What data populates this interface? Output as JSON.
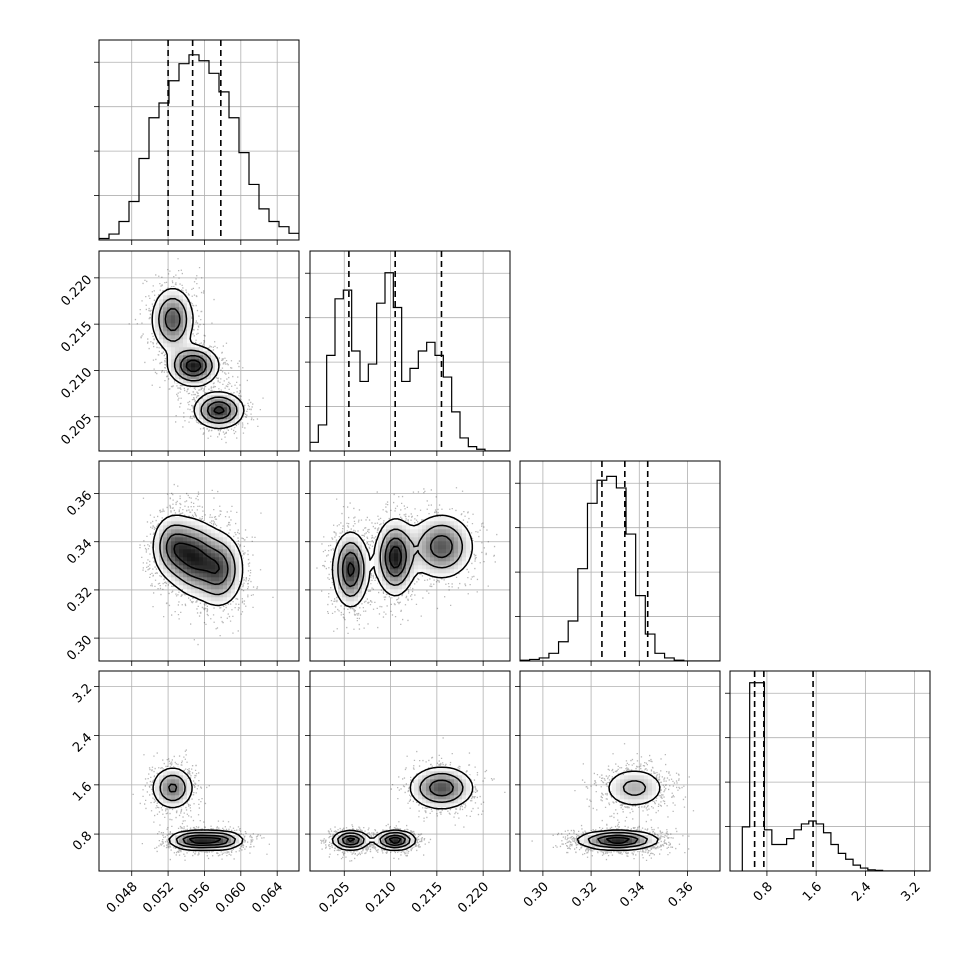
{
  "chart_data": {
    "type": "corner",
    "grid": true,
    "parameters": [
      {
        "index": 0,
        "range": [
          0.0444,
          0.0664
        ],
        "ticks": [
          "0.048",
          "0.052",
          "0.056",
          "0.060",
          "0.064"
        ],
        "tick_values": [
          0.048,
          0.052,
          0.056,
          0.06,
          0.064
        ],
        "quantiles": [
          0.052,
          0.0547,
          0.0578
        ],
        "histogram": {
          "bin_edges_start": 0.0444,
          "bin_width": 0.0011,
          "counts": [
            2,
            8,
            25,
            52,
            110,
            165,
            185,
            215,
            238,
            250,
            242,
            225,
            200,
            165,
            118,
            75,
            42,
            25,
            18,
            9,
            3,
            1
          ]
        },
        "hist_ylim": [
          0,
          270
        ]
      },
      {
        "index": 1,
        "range": [
          0.2013,
          0.2229
        ],
        "ticks": [
          "0.205",
          "0.210",
          "0.215",
          "0.220"
        ],
        "tick_values": [
          0.205,
          0.21,
          0.215,
          0.22
        ],
        "quantiles": [
          0.2055,
          0.2105,
          0.2155
        ],
        "histogram": {
          "bin_edges_start": 0.2013,
          "bin_width": 0.0009,
          "counts": [
            10,
            30,
            110,
            175,
            185,
            115,
            80,
            100,
            170,
            205,
            165,
            80,
            95,
            115,
            125,
            110,
            85,
            45,
            15,
            5,
            2,
            0,
            0,
            0
          ]
        },
        "hist_ylim": [
          0,
          230
        ]
      },
      {
        "index": 2,
        "range": [
          0.2905,
          0.3735
        ],
        "ticks": [
          "0.30",
          "0.32",
          "0.34",
          "0.36"
        ],
        "tick_values": [
          0.3,
          0.32,
          0.34,
          0.36
        ],
        "quantiles": [
          0.3245,
          0.334,
          0.3435
        ],
        "histogram": {
          "bin_edges_start": 0.2905,
          "bin_width": 0.004,
          "counts": [
            1,
            2,
            4,
            10,
            25,
            52,
            120,
            205,
            235,
            240,
            225,
            165,
            85,
            35,
            10,
            4,
            1,
            0,
            0,
            0,
            0
          ]
        },
        "hist_ylim": [
          0,
          260
        ]
      },
      {
        "index": 3,
        "range": [
          0.2,
          3.45
        ],
        "ticks": [
          "0.8",
          "1.6",
          "2.4",
          "3.2"
        ],
        "tick_values": [
          0.8,
          1.6,
          2.4,
          3.2
        ],
        "quantiles": [
          0.6,
          0.75,
          1.55
        ],
        "histogram": {
          "bin_edges_start": 0.4,
          "bin_width": 0.12,
          "counts": [
            75,
            320,
            320,
            70,
            45,
            45,
            55,
            70,
            80,
            85,
            80,
            65,
            45,
            30,
            20,
            10,
            5,
            2,
            1,
            0,
            0,
            0,
            0,
            0,
            0
          ]
        },
        "hist_ylim": [
          0,
          340
        ]
      }
    ],
    "modes": [
      {
        "c": [
          0.0525,
          0.2155,
          0.338,
          1.55
        ],
        "s": [
          0.0012,
          0.0018,
          0.007,
          0.18
        ],
        "w": 1.0
      },
      {
        "c": [
          0.0548,
          0.2105,
          0.3335,
          0.7
        ],
        "s": [
          0.0014,
          0.0011,
          0.008,
          0.08
        ],
        "w": 1.3
      },
      {
        "c": [
          0.0576,
          0.2057,
          0.3285,
          0.7
        ],
        "s": [
          0.0014,
          0.001,
          0.008,
          0.08
        ],
        "w": 1.2
      }
    ]
  }
}
